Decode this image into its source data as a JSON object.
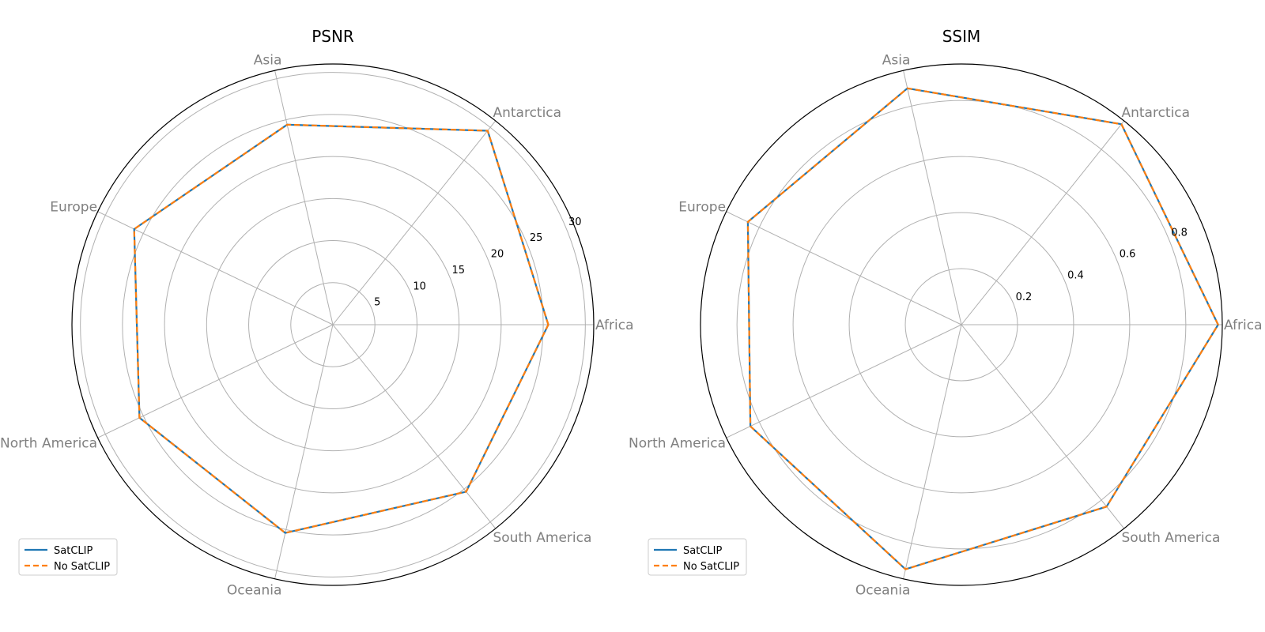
{
  "chart_data": [
    {
      "type": "radar",
      "title": "PSNR",
      "categories": [
        "Africa",
        "Antarctica",
        "Asia",
        "Europe",
        "North America",
        "Oceania",
        "South America"
      ],
      "rmax": 31,
      "ticks": [
        5,
        10,
        15,
        20,
        25,
        30
      ],
      "tick_labels": [
        "5",
        "10",
        "15",
        "20",
        "25",
        "30"
      ],
      "grid": true,
      "legend": "lower-left",
      "series": [
        {
          "name": "SatCLIP",
          "values": [
            25.6,
            29.5,
            24.4,
            26.2,
            25.5,
            25.4,
            25.4
          ],
          "color": "#1f77b4",
          "style": "solid"
        },
        {
          "name": "No SatCLIP",
          "values": [
            25.6,
            29.5,
            24.4,
            26.2,
            25.5,
            25.4,
            25.4
          ],
          "color": "#ff7f0e",
          "style": "dashed"
        }
      ]
    },
    {
      "type": "radar",
      "title": "SSIM",
      "categories": [
        "Africa",
        "Antarctica",
        "Asia",
        "Europe",
        "North America",
        "Oceania",
        "South America"
      ],
      "rmax": 0.93,
      "ticks": [
        0.2,
        0.4,
        0.6,
        0.8
      ],
      "tick_labels": [
        "0.2",
        "0.4",
        "0.6",
        "0.8"
      ],
      "grid": true,
      "legend": "lower-left",
      "series": [
        {
          "name": "SatCLIP",
          "values": [
            0.915,
            0.915,
            0.865,
            0.845,
            0.835,
            0.895,
            0.83
          ],
          "color": "#1f77b4",
          "style": "solid"
        },
        {
          "name": "No SatCLIP",
          "values": [
            0.915,
            0.915,
            0.865,
            0.845,
            0.835,
            0.895,
            0.83
          ],
          "color": "#ff7f0e",
          "style": "dashed"
        }
      ]
    }
  ]
}
